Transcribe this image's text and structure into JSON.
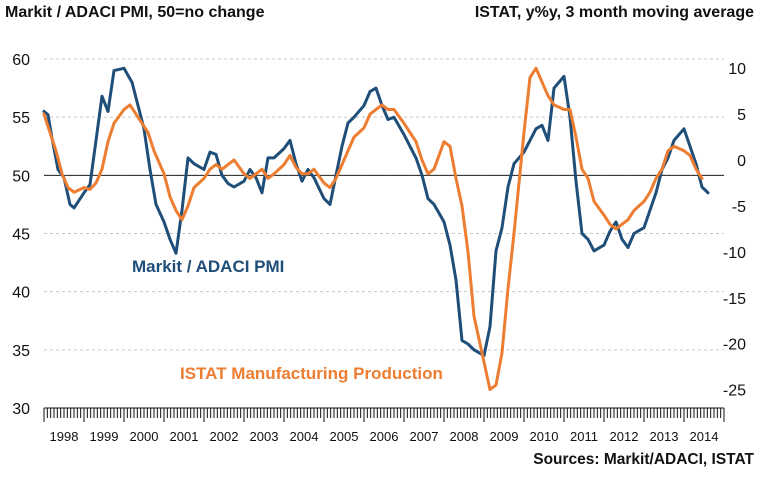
{
  "title_left": "Markit / ADACI PMI, 50=no change",
  "title_right": "ISTAT, y%y, 3 month moving average",
  "source": "Sources: Markit/ADACI, ISTAT",
  "colors": {
    "pmi": "#1f4e79",
    "istat": "#ed7d31",
    "grid": "#c8c8c8",
    "axis": "#111111"
  },
  "chart_data": {
    "type": "line",
    "title": "",
    "xlabel": "",
    "x_categories": [
      "1998",
      "1999",
      "2000",
      "2001",
      "2002",
      "2003",
      "2004",
      "2005",
      "2006",
      "2007",
      "2008",
      "2009",
      "2010",
      "2011",
      "2012",
      "2013",
      "2014"
    ],
    "y_left": {
      "label": "Markit / ADACI PMI, 50=no change",
      "lim": [
        30,
        60
      ],
      "ticks": [
        "30",
        "35",
        "40",
        "45",
        "50",
        "55",
        "60"
      ],
      "reference_line": 50
    },
    "y_right": {
      "label": "ISTAT, y%y, 3 month moving average",
      "lim": [
        -27,
        11
      ],
      "ticks": [
        "-25",
        "-20",
        "-15",
        "-10",
        "-5",
        "0",
        "5",
        "10"
      ]
    },
    "grid": "horizontal dashed",
    "annotations": [
      {
        "text": "Markit / ADACI PMI",
        "series": "pmi"
      },
      {
        "text": "ISTAT Manufacturing Production",
        "series": "istat"
      }
    ],
    "series": [
      {
        "name": "Markit / ADACI PMI",
        "axis": "left",
        "color": "#1f4e79",
        "x": [
          1998.0,
          1998.1,
          1998.2,
          1998.35,
          1998.5,
          1998.65,
          1998.75,
          1999.0,
          1999.15,
          1999.3,
          1999.45,
          1999.6,
          1999.75,
          2000.0,
          2000.2,
          2000.35,
          2000.5,
          2000.65,
          2000.8,
          2001.0,
          2001.15,
          2001.3,
          2001.45,
          2001.6,
          2001.75,
          2002.0,
          2002.15,
          2002.3,
          2002.45,
          2002.6,
          2002.75,
          2003.0,
          2003.15,
          2003.3,
          2003.45,
          2003.6,
          2003.75,
          2004.0,
          2004.15,
          2004.3,
          2004.45,
          2004.6,
          2004.75,
          2005.0,
          2005.15,
          2005.3,
          2005.45,
          2005.6,
          2005.75,
          2006.0,
          2006.15,
          2006.3,
          2006.45,
          2006.6,
          2006.75,
          2007.0,
          2007.15,
          2007.3,
          2007.45,
          2007.6,
          2007.75,
          2008.0,
          2008.15,
          2008.3,
          2008.45,
          2008.6,
          2008.75,
          2009.0,
          2009.15,
          2009.3,
          2009.45,
          2009.6,
          2009.75,
          2010.0,
          2010.15,
          2010.3,
          2010.45,
          2010.6,
          2010.75,
          2011.0,
          2011.15,
          2011.3,
          2011.45,
          2011.6,
          2011.75,
          2012.0,
          2012.15,
          2012.3,
          2012.45,
          2012.6,
          2012.75,
          2013.0,
          2013.15,
          2013.3,
          2013.45,
          2013.6,
          2013.75,
          2014.0,
          2014.15,
          2014.3,
          2014.45,
          2014.6
        ],
        "y": [
          55.5,
          55.2,
          53.2,
          50.5,
          49.8,
          47.5,
          47.2,
          48.5,
          49.2,
          53.0,
          56.8,
          55.5,
          59.0,
          59.2,
          58.0,
          56.0,
          54.0,
          50.5,
          47.5,
          46.0,
          44.5,
          43.3,
          47.0,
          51.5,
          51.0,
          50.5,
          52.0,
          51.8,
          50.0,
          49.3,
          49.0,
          49.5,
          50.5,
          49.8,
          48.5,
          51.5,
          51.5,
          52.3,
          53.0,
          51.0,
          49.5,
          50.5,
          49.8,
          48.0,
          47.5,
          50.0,
          52.5,
          54.5,
          55.0,
          56.0,
          57.2,
          57.5,
          56.0,
          54.8,
          55.0,
          53.5,
          52.5,
          51.5,
          50.0,
          48.0,
          47.5,
          46.0,
          44.0,
          41.0,
          35.8,
          35.5,
          35.0,
          34.5,
          37.0,
          43.5,
          45.5,
          49.0,
          51.0,
          52.0,
          53.0,
          54.0,
          54.3,
          53.0,
          57.5,
          58.5,
          55.0,
          49.5,
          45.0,
          44.5,
          43.5,
          44.0,
          45.2,
          46.0,
          44.5,
          43.8,
          45.0,
          45.5,
          47.0,
          48.5,
          50.5,
          51.5,
          53.0,
          54.0,
          52.5,
          51.0,
          49.0,
          48.5
        ]
      },
      {
        "name": "ISTAT Manufacturing Production",
        "axis": "right",
        "color": "#ed7d31",
        "x": [
          1998.0,
          1998.15,
          1998.3,
          1998.45,
          1998.6,
          1998.75,
          1999.0,
          1999.15,
          1999.3,
          1999.45,
          1999.6,
          1999.75,
          2000.0,
          2000.15,
          2000.3,
          2000.45,
          2000.6,
          2000.75,
          2001.0,
          2001.15,
          2001.3,
          2001.45,
          2001.6,
          2001.75,
          2002.0,
          2002.15,
          2002.3,
          2002.45,
          2002.6,
          2002.75,
          2003.0,
          2003.15,
          2003.3,
          2003.45,
          2003.6,
          2003.75,
          2004.0,
          2004.15,
          2004.3,
          2004.45,
          2004.6,
          2004.75,
          2005.0,
          2005.15,
          2005.3,
          2005.45,
          2005.6,
          2005.75,
          2006.0,
          2006.15,
          2006.3,
          2006.45,
          2006.6,
          2006.75,
          2007.0,
          2007.15,
          2007.3,
          2007.45,
          2007.6,
          2007.75,
          2008.0,
          2008.15,
          2008.3,
          2008.45,
          2008.6,
          2008.75,
          2009.0,
          2009.15,
          2009.3,
          2009.45,
          2009.6,
          2009.75,
          2010.0,
          2010.15,
          2010.3,
          2010.45,
          2010.6,
          2010.75,
          2011.0,
          2011.15,
          2011.3,
          2011.45,
          2011.6,
          2011.75,
          2012.0,
          2012.15,
          2012.3,
          2012.45,
          2012.6,
          2012.75,
          2013.0,
          2013.15,
          2013.3,
          2013.45,
          2013.6,
          2013.75,
          2014.0,
          2014.15,
          2014.3,
          2014.45
        ],
        "y": [
          5.0,
          3.0,
          1.0,
          -1.5,
          -3.0,
          -3.5,
          -3.0,
          -3.2,
          -2.5,
          -1.0,
          2.0,
          4.0,
          5.5,
          6.0,
          5.0,
          4.0,
          3.0,
          1.0,
          -1.5,
          -4.0,
          -5.5,
          -6.5,
          -5.0,
          -3.0,
          -2.0,
          -1.0,
          -0.5,
          -1.0,
          -0.5,
          0.0,
          -1.5,
          -2.0,
          -1.5,
          -1.0,
          -2.0,
          -1.5,
          -0.5,
          0.5,
          -0.8,
          -1.5,
          -1.5,
          -1.0,
          -2.5,
          -3.0,
          -2.0,
          -0.5,
          1.0,
          2.5,
          3.5,
          5.0,
          5.5,
          6.0,
          5.5,
          5.5,
          4.0,
          3.0,
          2.0,
          0.0,
          -1.5,
          -1.0,
          2.0,
          1.5,
          -2.0,
          -5.0,
          -10.0,
          -17.0,
          -22.0,
          -25.0,
          -24.5,
          -21.0,
          -14.0,
          -8.0,
          3.0,
          9.0,
          10.0,
          8.5,
          7.0,
          6.0,
          5.5,
          5.5,
          2.5,
          -1.0,
          -2.0,
          -4.5,
          -6.0,
          -7.0,
          -7.5,
          -7.0,
          -6.5,
          -5.5,
          -4.5,
          -3.5,
          -2.0,
          -1.0,
          1.0,
          1.5,
          1.0,
          0.5,
          -1.0,
          -2.0
        ]
      }
    ]
  }
}
